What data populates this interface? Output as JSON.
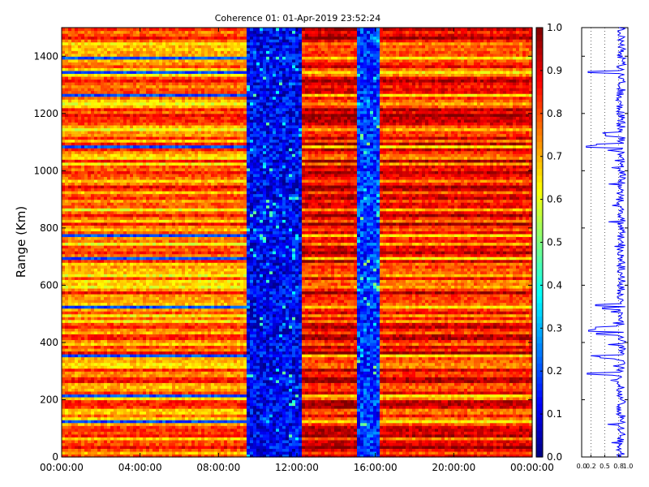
{
  "chart_data": [
    {
      "type": "heatmap",
      "title": "Coherence 01: 01-Apr-2019 23:52:24",
      "xlabel": "",
      "ylabel": "Range (Km)",
      "x_ticks": [
        "00:00:00",
        "04:00:00",
        "08:00:00",
        "12:00:00",
        "16:00:00",
        "20:00:00",
        "00:00:00"
      ],
      "y_ticks": [
        0,
        200,
        400,
        600,
        800,
        1000,
        1200,
        1400
      ],
      "ylim": [
        0,
        1500
      ],
      "x_range_hours": [
        0,
        24
      ],
      "colorbar": {
        "colormap": "jet",
        "range": [
          0,
          1
        ],
        "ticks": [
          "0.0",
          "0.1",
          "0.2",
          "0.3",
          "0.4",
          "0.5",
          "0.6",
          "0.7",
          "0.8",
          "0.9",
          "1.0"
        ]
      },
      "time_blocks": [
        {
          "start_hour": 0.0,
          "end_hour": 9.5,
          "coherence_level": 0.75
        },
        {
          "start_hour": 9.5,
          "end_hour": 12.2,
          "coherence_level": 0.12
        },
        {
          "start_hour": 12.2,
          "end_hour": 15.1,
          "coherence_level": 0.87
        },
        {
          "start_hour": 15.1,
          "end_hour": 16.2,
          "coherence_level": 0.18
        },
        {
          "start_hour": 16.2,
          "end_hour": 24.0,
          "coherence_level": 0.84
        }
      ],
      "low_coherence_ranges_km": [
        120,
        210,
        350,
        520,
        690,
        770,
        1080,
        1260,
        1340,
        1395
      ]
    },
    {
      "type": "line",
      "title": "",
      "xlabel": "",
      "ylabel": "",
      "x_ticks": [
        "0.0",
        "0.2",
        "0.5",
        "0.8",
        "1.0"
      ],
      "xlim": [
        0,
        1
      ],
      "ylim": [
        0,
        1500
      ],
      "series_color": "#0000ff",
      "dips": [
        {
          "range_km": 1345,
          "value": 0.14
        },
        {
          "range_km": 1130,
          "value": 0.45
        },
        {
          "range_km": 1125,
          "value": 0.52
        },
        {
          "range_km": 1090,
          "value": 0.32
        },
        {
          "range_km": 1085,
          "value": 0.1
        },
        {
          "range_km": 530,
          "value": 0.3
        },
        {
          "range_km": 520,
          "value": 0.45
        },
        {
          "range_km": 450,
          "value": 0.3
        },
        {
          "range_km": 440,
          "value": 0.15
        },
        {
          "range_km": 430,
          "value": 0.32
        },
        {
          "range_km": 350,
          "value": 0.4
        },
        {
          "range_km": 290,
          "value": 0.12
        }
      ]
    }
  ]
}
